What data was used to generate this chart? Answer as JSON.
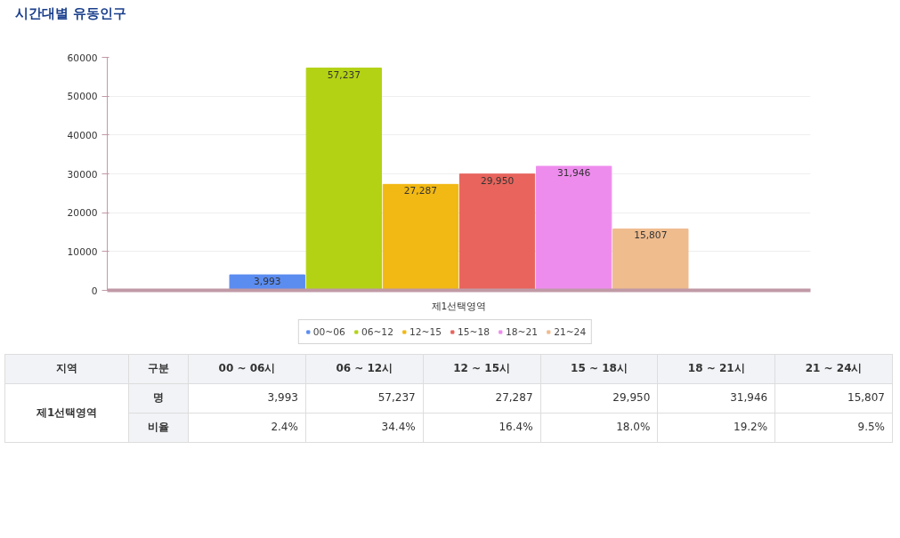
{
  "chart_data": {
    "type": "bar",
    "title": "시간대별 유동인구",
    "categories": [
      "제1선택영역"
    ],
    "series": [
      {
        "name": "00~06",
        "color": "#5b8cf0",
        "values": [
          3993
        ],
        "value_labels": [
          "3,993"
        ]
      },
      {
        "name": "06~12",
        "color": "#b4d214",
        "values": [
          57237
        ],
        "value_labels": [
          "57,237"
        ]
      },
      {
        "name": "12~15",
        "color": "#f2b813",
        "values": [
          27287
        ],
        "value_labels": [
          "27,287"
        ]
      },
      {
        "name": "15~18",
        "color": "#e8645c",
        "values": [
          29950
        ],
        "value_labels": [
          "29,950"
        ]
      },
      {
        "name": "18~21",
        "color": "#ee8cee",
        "values": [
          31946
        ],
        "value_labels": [
          "31,946"
        ]
      },
      {
        "name": "21~24",
        "color": "#efbc8e",
        "values": [
          15807
        ],
        "value_labels": [
          "15,807"
        ]
      }
    ],
    "ylim": [
      0,
      60000
    ],
    "yticks": [
      0,
      10000,
      20000,
      30000,
      40000,
      50000,
      60000
    ],
    "grid": "y",
    "legend": "bottom",
    "annotations": [
      "지역",
      "구분",
      "00 ~ 06시",
      "06 ~ 12시",
      "12 ~ 15시",
      "15 ~ 18시",
      "18 ~ 21시",
      "21 ~ 24시",
      "명",
      "비율",
      "2.4%",
      "34.4%",
      "16.4%",
      "18.0%",
      "19.2%",
      "9.5%"
    ]
  }
}
